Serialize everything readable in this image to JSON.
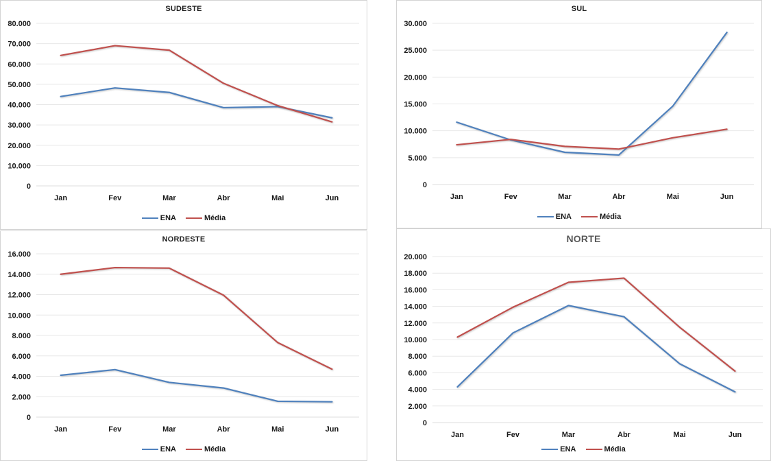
{
  "colors": {
    "ena": "#4F81BD",
    "media": "#C0504D",
    "grid": "#E7E7E7",
    "axis": "#DEDEDE",
    "panel_border": "#D4D4D4",
    "background": "#FFFFFF",
    "title_default": "#1F1F1F",
    "title_norte": "#595959",
    "label_text": "#1A1A1A"
  },
  "chart_data": [
    {
      "type": "line",
      "title": "SUDESTE",
      "title_color": "#1F1F1F",
      "title_size": 11,
      "categories": [
        "Jan",
        "Fev",
        "Mar",
        "Abr",
        "Mai",
        "Jun"
      ],
      "series": [
        {
          "name": "ENA",
          "color": "#4F81BD",
          "values": [
            44000,
            48200,
            46000,
            38500,
            39000,
            33500
          ]
        },
        {
          "name": "Média",
          "color": "#C0504D",
          "values": [
            64200,
            69000,
            66800,
            50500,
            39500,
            31500
          ]
        }
      ],
      "ylim": [
        0,
        80000
      ],
      "ytick_step": 10000,
      "ytick_format": "thousands-dot",
      "grid": true,
      "legend_position": "bottom"
    },
    {
      "type": "line",
      "title": "SUL",
      "title_color": "#1F1F1F",
      "title_size": 11,
      "categories": [
        "Jan",
        "Fev",
        "Mar",
        "Abr",
        "Mai",
        "Jun"
      ],
      "series": [
        {
          "name": "ENA",
          "color": "#4F81BD",
          "values": [
            11600,
            8300,
            6000,
            5500,
            14600,
            28300
          ]
        },
        {
          "name": "Média",
          "color": "#C0504D",
          "values": [
            7400,
            8400,
            7100,
            6600,
            8700,
            10300
          ]
        }
      ],
      "ylim": [
        0,
        30000
      ],
      "ytick_step": 5000,
      "ytick_format": "thousands-dot",
      "grid": true,
      "legend_position": "bottom"
    },
    {
      "type": "line",
      "title": "NORDESTE",
      "title_color": "#1F1F1F",
      "title_size": 11,
      "categories": [
        "Jan",
        "Fev",
        "Mar",
        "Abr",
        "Mai",
        "Jun"
      ],
      "series": [
        {
          "name": "ENA",
          "color": "#4F81BD",
          "values": [
            4100,
            4650,
            3400,
            2850,
            1550,
            1500
          ]
        },
        {
          "name": "Média",
          "color": "#C0504D",
          "values": [
            14000,
            14650,
            14600,
            11950,
            7300,
            4700
          ]
        }
      ],
      "ylim": [
        0,
        16000
      ],
      "ytick_step": 2000,
      "ytick_format": "thousands-dot",
      "grid": true,
      "legend_position": "bottom"
    },
    {
      "type": "line",
      "title": "NORTE",
      "title_color": "#595959",
      "title_size": 14,
      "categories": [
        "Jan",
        "Fev",
        "Mar",
        "Abr",
        "Mai",
        "Jun"
      ],
      "series": [
        {
          "name": "ENA",
          "color": "#4F81BD",
          "values": [
            4300,
            10800,
            14100,
            12750,
            7100,
            3700
          ]
        },
        {
          "name": "Média",
          "color": "#C0504D",
          "values": [
            10300,
            13900,
            16900,
            17400,
            11500,
            6200
          ]
        }
      ],
      "ylim": [
        0,
        20000
      ],
      "ytick_step": 2000,
      "ytick_format": "thousands-dot",
      "grid": true,
      "legend_position": "bottom"
    }
  ]
}
